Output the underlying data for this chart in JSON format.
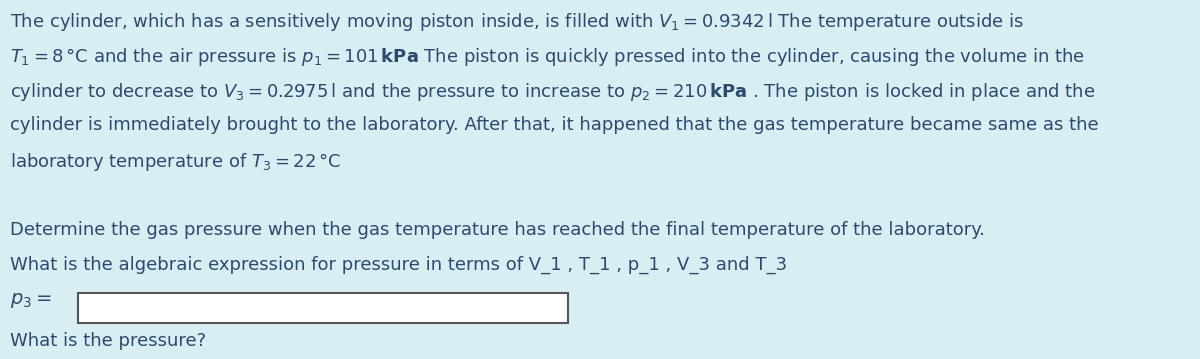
{
  "bg_color": "#d9eef3",
  "text_color": "#2c4a6e",
  "fs": 13.0,
  "lines": [
    "The cylinder, which has a sensitively moving piston inside, is filled with $V_1 = 0.9342\\,\\mathrm{l}$ The temperature outside is",
    "$T_1 = 8\\,\\mathrm{°C}$ and the air pressure is $p_1 = 101\\,\\mathbf{kPa}$ The piston is quickly pressed into the cylinder, causing the volume in the",
    "cylinder to decrease to $V_3 = 0.2975\\,\\mathrm{l}$ and the pressure to increase to $p_2 = 210\\,\\mathbf{kPa}$ . The piston is locked in place and the",
    "cylinder is immediately brought to the laboratory. After that, it happened that the gas temperature became same as the",
    "laboratory temperature of $T_3 = 22\\,\\mathrm{°C}$"
  ],
  "question1": "Determine the gas pressure when the gas temperature has reached the final temperature of the laboratory.",
  "question2": "What is the algebraic expression for pressure in terms of V_1 , T_1 , p_1 , V_3 and T_3",
  "p3_label": "$p_3 =$",
  "what_pressure": "What is the pressure?",
  "kpa_label": "kPa"
}
